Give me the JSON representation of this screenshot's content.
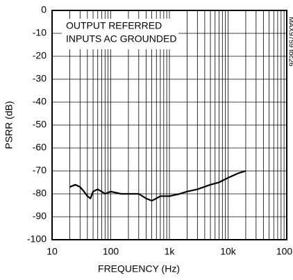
{
  "chart_data": {
    "type": "line",
    "x_label": "FREQUENCY (Hz)",
    "y_label": "PSRR (dB)",
    "annotation": [
      "OUTPUT REFERRED",
      "INPUTS AC GROUNDED"
    ],
    "side_note": "MAX9759 toc26",
    "x_log": true,
    "grid": true,
    "xlim": [
      10,
      100000
    ],
    "xticks": [
      10,
      100,
      {
        "value": 1000,
        "label": "1k"
      },
      {
        "value": 10000,
        "label": "10k"
      },
      {
        "value": 100000,
        "label": "100k"
      }
    ],
    "ylim": [
      -100,
      0
    ],
    "yticks": [
      0,
      -10,
      -20,
      -30,
      -40,
      -50,
      -60,
      -70,
      -80,
      -90,
      -100
    ],
    "series": [
      {
        "color": "#000000",
        "x": [
          20,
          25,
          30,
          35,
          40,
          45,
          50,
          60,
          70,
          80,
          100,
          150,
          200,
          300,
          400,
          500,
          600,
          700,
          1000,
          1500,
          2000,
          3000,
          5000,
          7000,
          10000,
          15000,
          20000
        ],
        "values": [
          -77,
          -76,
          -77,
          -79,
          -81,
          -82,
          -79,
          -78,
          -79,
          -80,
          -79,
          -80,
          -80,
          -80,
          -82,
          -83,
          -82,
          -81,
          -81,
          -80,
          -79,
          -78,
          -76,
          -75,
          -73,
          -71,
          -70
        ]
      }
    ]
  }
}
